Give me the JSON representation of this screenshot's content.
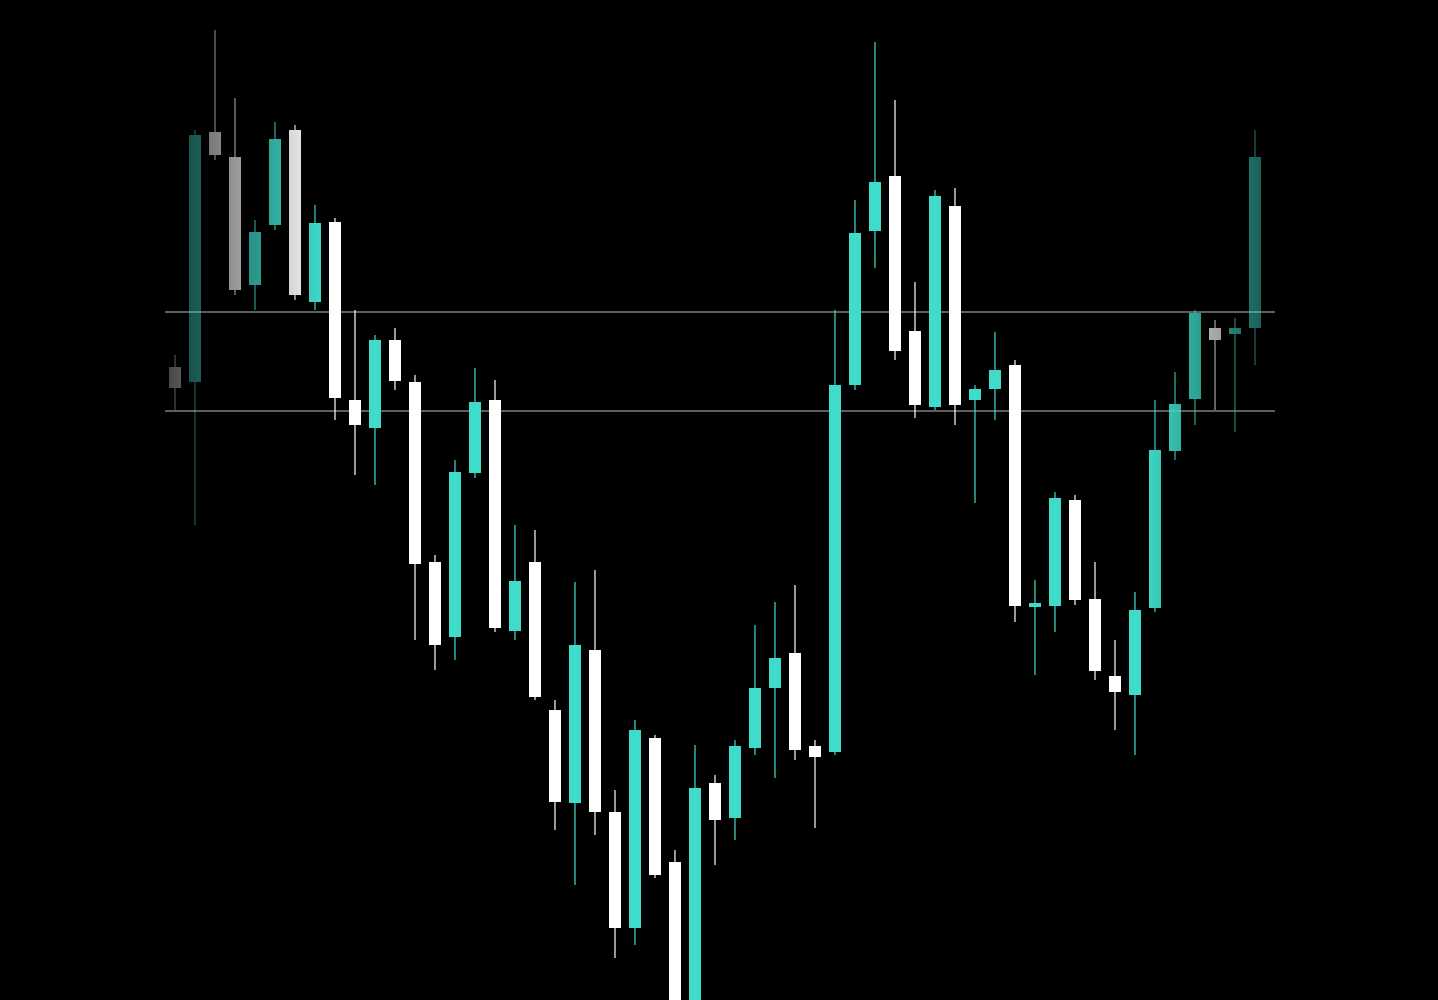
{
  "chart_data": {
    "type": "candlestick",
    "open": [
      633,
      618,
      868,
      843,
      715,
      775,
      870,
      698,
      778,
      600,
      572,
      660,
      618,
      438,
      363,
      527,
      600,
      369,
      438,
      290,
      197,
      350,
      188,
      72,
      262,
      138,
      0,
      217,
      182,
      252,
      312,
      347,
      254,
      248,
      615,
      769,
      824,
      669,
      593,
      794,
      600,
      611,
      635,
      393,
      394,
      500,
      401,
      324,
      305,
      392,
      549,
      601,
      672,
      666,
      672
    ],
    "high": [
      645,
      870,
      970,
      902,
      780,
      878,
      875,
      795,
      782,
      690,
      665,
      672,
      625,
      445,
      540,
      632,
      620,
      475,
      470,
      300,
      418,
      430,
      210,
      280,
      265,
      150,
      255,
      225,
      260,
      375,
      398,
      415,
      260,
      690,
      800,
      958,
      900,
      718,
      810,
      812,
      615,
      668,
      640,
      420,
      508,
      505,
      438,
      360,
      408,
      600,
      628,
      690,
      680,
      682,
      870
    ],
    "low": [
      590,
      475,
      840,
      705,
      690,
      770,
      700,
      690,
      580,
      525,
      515,
      610,
      360,
      330,
      340,
      522,
      368,
      360,
      300,
      170,
      115,
      165,
      42,
      55,
      122,
      0,
      0,
      135,
      160,
      245,
      222,
      240,
      172,
      245,
      610,
      732,
      640,
      582,
      590,
      575,
      497,
      580,
      378,
      325,
      368,
      395,
      320,
      270,
      245,
      388,
      540,
      575,
      590,
      568,
      635
    ],
    "close": [
      612,
      865,
      845,
      710,
      768,
      861,
      705,
      777,
      602,
      575,
      660,
      619,
      436,
      355,
      528,
      598,
      372,
      419,
      303,
      198,
      355,
      188,
      72,
      270,
      125,
      0,
      212,
      180,
      254,
      312,
      342,
      250,
      243,
      615,
      767,
      818,
      649,
      595,
      804,
      595,
      611,
      630,
      394,
      397,
      502,
      400,
      329,
      308,
      390,
      550,
      596,
      687,
      660,
      672,
      843
    ],
    "up_color": "#3fdccb",
    "down_color": "#ffffff",
    "levels": [
      688,
      589
    ],
    "level_color": "#bdbdbd",
    "ylim": [
      0,
      1000
    ]
  }
}
